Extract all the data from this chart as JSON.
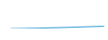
{
  "x": [
    0,
    1,
    2,
    3,
    4,
    5,
    6,
    7,
    8,
    9,
    10,
    11,
    12,
    13,
    14,
    15,
    16,
    17,
    18,
    19,
    20
  ],
  "y": [
    1,
    1.3,
    1.6,
    2.0,
    2.4,
    2.8,
    3.2,
    3.7,
    4.2,
    4.7,
    5.2,
    5.8,
    6.4,
    7.0,
    7.6,
    8.2,
    8.9,
    9.6,
    10.3,
    11.0,
    11.8
  ],
  "line_color": "#3a9fd4",
  "plot_bg_color": "#1a1a2e",
  "fig_bg_color": "#ffffff",
  "linewidth": 0.8,
  "ylim": [
    0,
    80
  ],
  "xlim": [
    -0.5,
    20.5
  ]
}
